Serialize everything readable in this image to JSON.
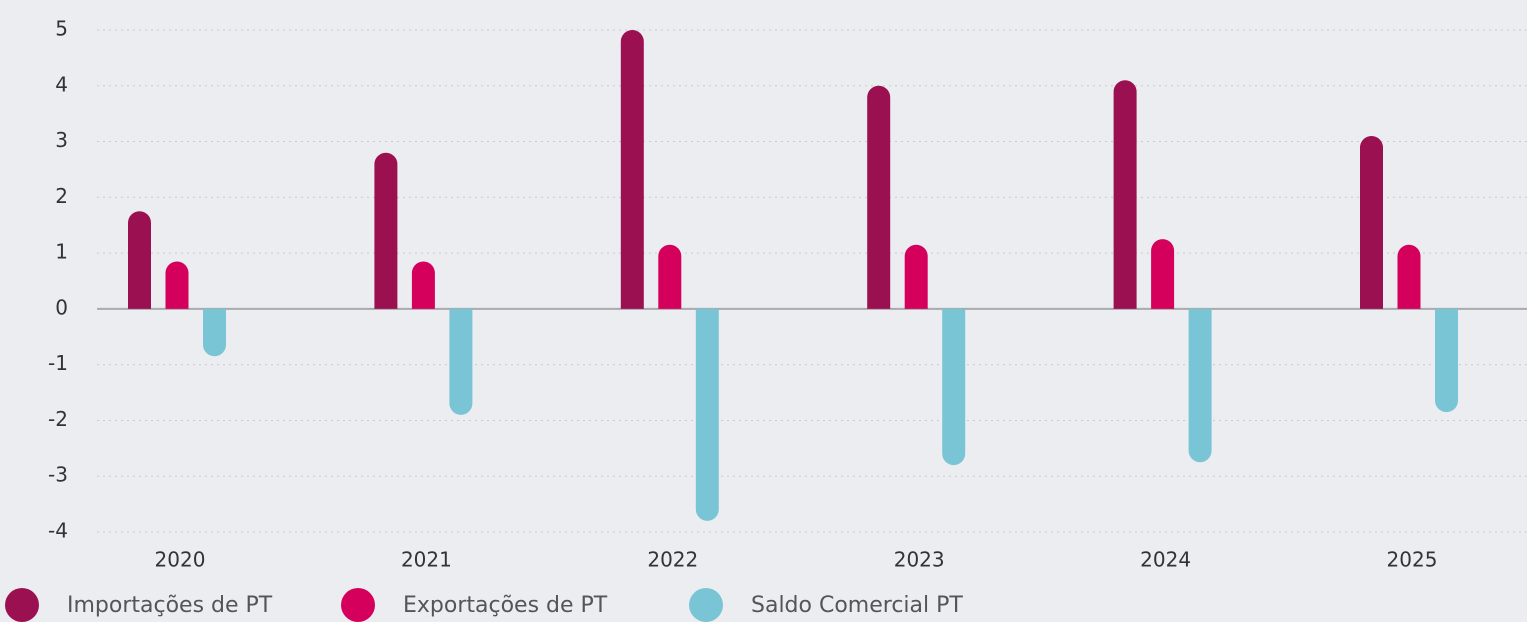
{
  "chart_data": {
    "type": "bar",
    "categories": [
      "2020",
      "2021",
      "2022",
      "2023",
      "2024",
      "2025"
    ],
    "series": [
      {
        "name": "Importações de PT",
        "color": "#9b1050",
        "values": [
          1.75,
          2.8,
          5.0,
          4.0,
          4.1,
          3.1
        ]
      },
      {
        "name": "Exportações de PT",
        "color": "#d4005b",
        "values": [
          0.85,
          0.85,
          1.15,
          1.15,
          1.25,
          1.15
        ]
      },
      {
        "name": "Saldo Comercial PT",
        "color": "#79c5d5",
        "values": [
          -0.85,
          -1.9,
          -3.8,
          -2.8,
          -2.75,
          -1.85
        ]
      }
    ],
    "ylim": [
      -4,
      5
    ],
    "yticks": [
      -4,
      -3,
      -2,
      -1,
      0,
      1,
      2,
      3,
      4,
      5
    ],
    "grid": true,
    "legend": "bottom"
  }
}
